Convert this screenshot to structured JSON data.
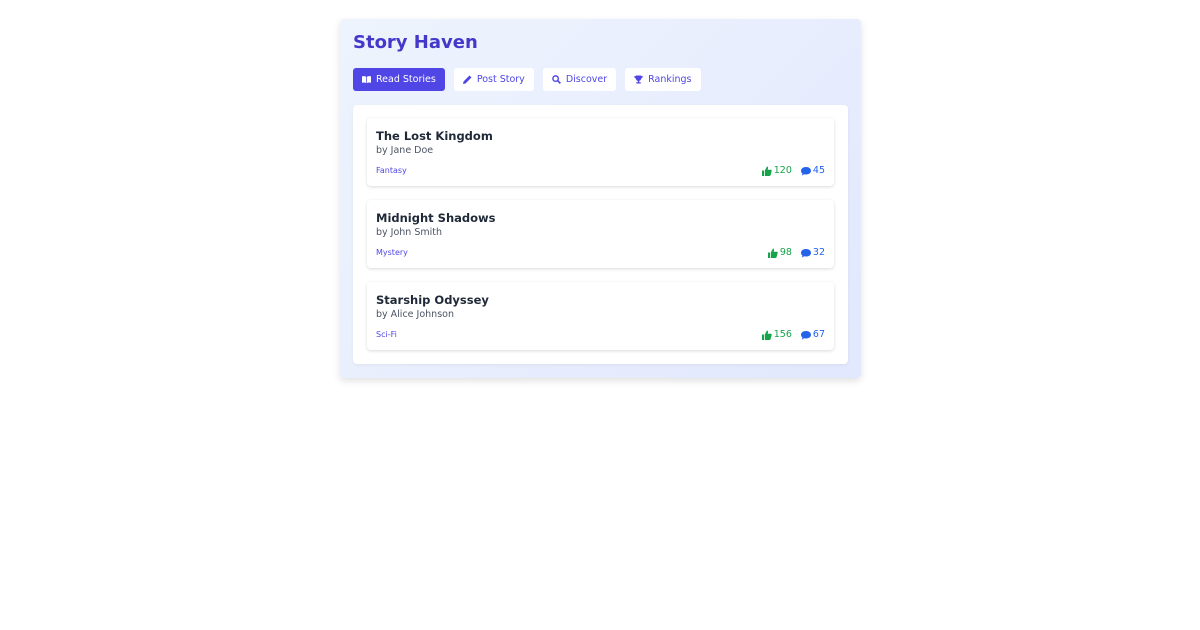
{
  "app": {
    "title": "Story Haven"
  },
  "nav": [
    {
      "label": "Read Stories",
      "icon": "book-icon",
      "active": true
    },
    {
      "label": "Post Story",
      "icon": "pencil-icon"
    },
    {
      "label": "Discover",
      "icon": "search-icon"
    },
    {
      "label": "Rankings",
      "icon": "trophy-icon"
    }
  ],
  "stories": [
    {
      "title": "The Lost Kingdom",
      "author": "by Jane Doe",
      "genre": "Fantasy",
      "likes": "120",
      "comments": "45"
    },
    {
      "title": "Midnight Shadows",
      "author": "by John Smith",
      "genre": "Mystery",
      "likes": "98",
      "comments": "32"
    },
    {
      "title": "Starship Odyssey",
      "author": "by Alice Johnson",
      "genre": "Sci-Fi",
      "likes": "156",
      "comments": "67"
    }
  ],
  "colors": {
    "accent": "#4f46e5",
    "title": "#4338ca",
    "likes": "#16a34a",
    "comments": "#2563eb"
  }
}
